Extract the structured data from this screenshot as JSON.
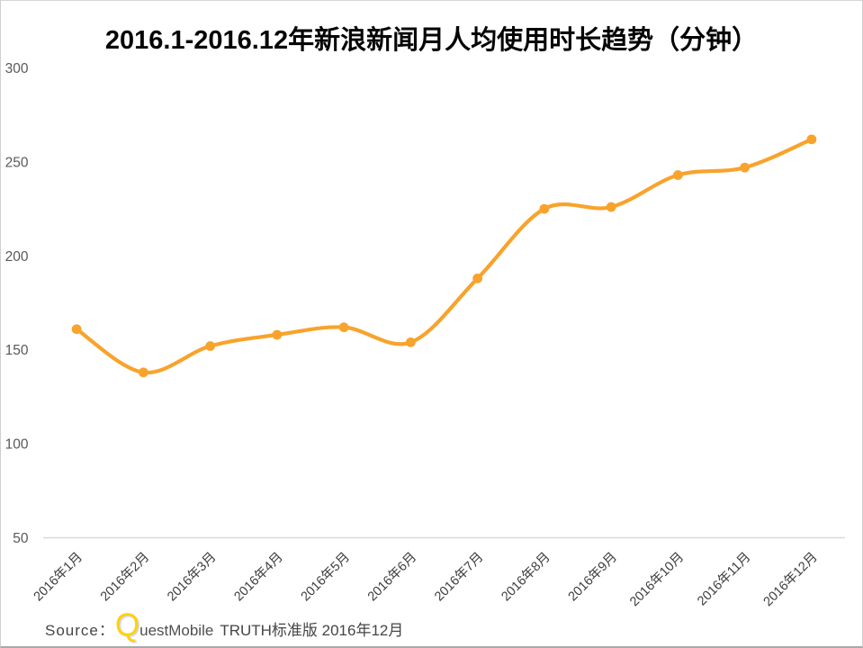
{
  "chart_data": {
    "type": "line",
    "title": "2016.1-2016.12年新浪新闻月人均使用时长趋势（分钟）",
    "categories": [
      "2016年1月",
      "2016年2月",
      "2016年3月",
      "2016年4月",
      "2016年5月",
      "2016年6月",
      "2016年7月",
      "2016年8月",
      "2016年9月",
      "2016年10月",
      "2016年11月",
      "2016年12月"
    ],
    "series": [
      {
        "name": "新浪新闻月人均使用时长(分钟)",
        "values": [
          161,
          138,
          152,
          158,
          162,
          154,
          188,
          225,
          226,
          243,
          247,
          262
        ]
      }
    ],
    "ylim": [
      50,
      300
    ],
    "yticks": [
      300,
      250,
      200,
      150,
      100,
      50
    ],
    "xlabel": "",
    "ylabel": "",
    "legend": "none",
    "grid": "single baseline at y=50 only",
    "x_label_rotation_deg": 45,
    "smooth": true,
    "marker": "circle",
    "line_color": "#F8A32C"
  },
  "source": {
    "prefix": "Source：",
    "brand_q": "Q",
    "brand_rest": "uestMobile",
    "suffix": "TRUTH标准版 2016年12月"
  },
  "colors": {
    "title": "#050505",
    "y_tick_label": "#595959",
    "x_tick_label": "#3d3d3d",
    "baseline": "#d9d9d9",
    "line": "#F8A32C",
    "marker": "#F8A32C",
    "brand_q": "#FFD10E"
  }
}
